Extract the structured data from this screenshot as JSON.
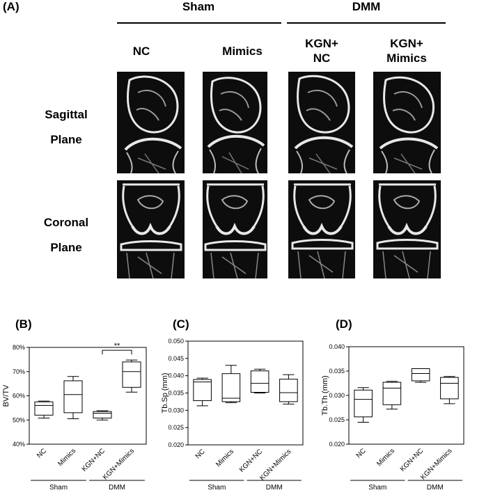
{
  "panel_a": {
    "label": "(A)",
    "groups": [
      {
        "name": "Sham"
      },
      {
        "name": "DMM"
      }
    ],
    "columns": [
      {
        "l1": "NC",
        "l2": ""
      },
      {
        "l1": "Mimics",
        "l2": ""
      },
      {
        "l1": "KGN+",
        "l2": "NC"
      },
      {
        "l1": "KGN+",
        "l2": "Mimics"
      }
    ],
    "rows": [
      {
        "l1": "Sagittal",
        "l2": "Plane"
      },
      {
        "l1": "Coronal",
        "l2": "Plane"
      }
    ]
  },
  "chart_data": [
    {
      "type": "box",
      "panel": "(B)",
      "ylabel": "BV/TV",
      "yticks": [
        "40%",
        "50%",
        "60%",
        "70%",
        "80%"
      ],
      "ylim": [
        40,
        80
      ],
      "categories": [
        "NC",
        "Mimics",
        "KGN+NC",
        "KGN+Mimics"
      ],
      "groups": [
        {
          "name": "Sham",
          "from": 0,
          "to": 1
        },
        {
          "name": "DMM",
          "from": 2,
          "to": 3
        }
      ],
      "boxes": [
        {
          "min": 50.8,
          "q1": 52.0,
          "median": 56.0,
          "q3": 57.5,
          "max": 57.8
        },
        {
          "min": 50.5,
          "q1": 53.0,
          "median": 60.5,
          "q3": 66.2,
          "max": 68.0
        },
        {
          "min": 50.0,
          "q1": 50.8,
          "median": 52.8,
          "q3": 53.5,
          "max": 53.8
        },
        {
          "min": 61.5,
          "q1": 63.5,
          "median": 70.0,
          "q3": 74.0,
          "max": 74.8
        }
      ],
      "significance": {
        "from": 2,
        "to": 3,
        "label": "**"
      }
    },
    {
      "type": "box",
      "panel": "(C)",
      "ylabel": "Tb.Sp (mm)",
      "yticks": [
        "0.020",
        "0.025",
        "0.030",
        "0.035",
        "0.040",
        "0.045",
        "0.050"
      ],
      "ylim": [
        0.02,
        0.05
      ],
      "categories": [
        "NC",
        "Mimics",
        "KGN+NC",
        "KGN+Mimics"
      ],
      "groups": [
        {
          "name": "Sham",
          "from": 0,
          "to": 1
        },
        {
          "name": "DMM",
          "from": 2,
          "to": 3
        }
      ],
      "boxes": [
        {
          "min": 0.0313,
          "q1": 0.0328,
          "median": 0.0382,
          "q3": 0.0389,
          "max": 0.0393
        },
        {
          "min": 0.0322,
          "q1": 0.0325,
          "median": 0.0335,
          "q3": 0.0406,
          "max": 0.043
        },
        {
          "min": 0.035,
          "q1": 0.0352,
          "median": 0.0378,
          "q3": 0.0414,
          "max": 0.0419
        },
        {
          "min": 0.0318,
          "q1": 0.0325,
          "median": 0.0351,
          "q3": 0.039,
          "max": 0.0403
        }
      ]
    },
    {
      "type": "box",
      "panel": "(D)",
      "ylabel": "Tb.Th (mm)",
      "yticks": [
        "0.020",
        "0.025",
        "0.030",
        "0.035",
        "0.040"
      ],
      "ylim": [
        0.02,
        0.04
      ],
      "categories": [
        "NC",
        "Mimics",
        "KGN+NC",
        "KGN+Mimics"
      ],
      "groups": [
        {
          "name": "Sham",
          "from": 0,
          "to": 1
        },
        {
          "name": "DMM",
          "from": 2,
          "to": 3
        }
      ],
      "boxes": [
        {
          "min": 0.0245,
          "q1": 0.0256,
          "median": 0.0292,
          "q3": 0.0311,
          "max": 0.0316
        },
        {
          "min": 0.0272,
          "q1": 0.0281,
          "median": 0.0315,
          "q3": 0.0327,
          "max": 0.0329
        },
        {
          "min": 0.0327,
          "q1": 0.033,
          "median": 0.0345,
          "q3": 0.0355,
          "max": 0.0355
        },
        {
          "min": 0.0283,
          "q1": 0.0293,
          "median": 0.0325,
          "q3": 0.0337,
          "max": 0.0339
        }
      ]
    }
  ]
}
